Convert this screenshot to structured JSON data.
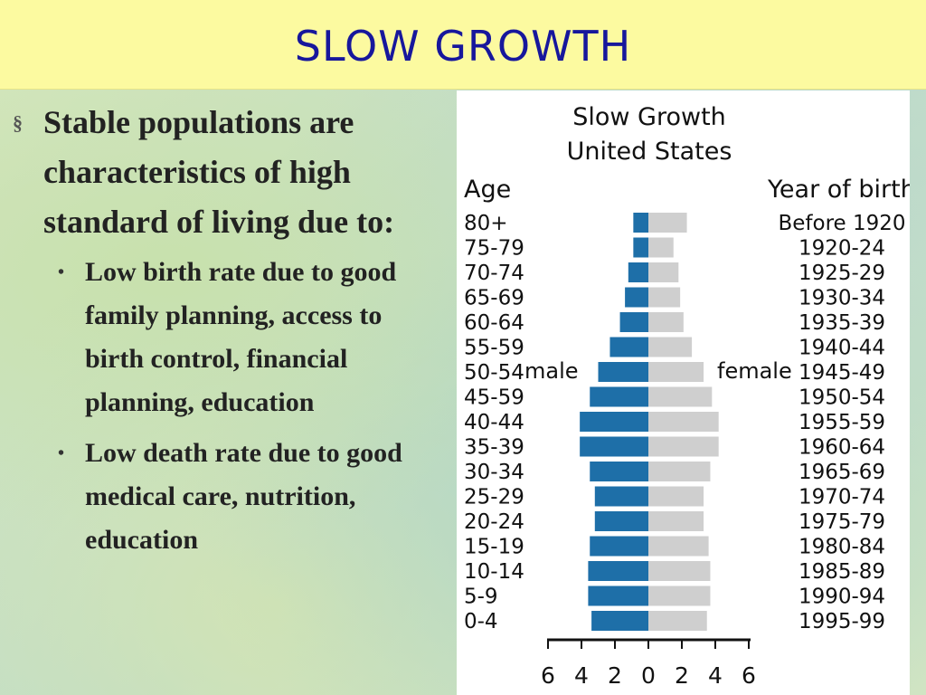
{
  "slide": {
    "title": "SLOW GROWTH",
    "bullet_main": "Stable populations are characteristics of high standard of living due to:",
    "sub_bullets": [
      "Low birth rate due to good family planning, access to birth control, financial planning, education",
      "Low death rate due to good medical care, nutrition, education"
    ],
    "bullet_marker": "§",
    "sub_marker": "•"
  },
  "chart_data": {
    "type": "bar",
    "orientation": "horizontal-population-pyramid",
    "title": "Slow Growth",
    "subtitle": "United States",
    "left_header": "Age",
    "right_header": "Year of birth",
    "male_label": "male",
    "female_label": "female",
    "xlim": [
      -6,
      6
    ],
    "x_ticks": [
      "6",
      "4",
      "2",
      "0",
      "2",
      "4",
      "6"
    ],
    "age_groups": [
      "80+",
      "75-79",
      "70-74",
      "65-69",
      "60-64",
      "55-59",
      "50-54",
      "45-59",
      "40-44",
      "35-39",
      "30-34",
      "25-29",
      "20-24",
      "15-19",
      "10-14",
      "5-9",
      "0-4"
    ],
    "birth_years": [
      "Before 1920",
      "1920-24",
      "1925-29",
      "1930-34",
      "1935-39",
      "1940-44",
      "1945-49",
      "1950-54",
      "1955-59",
      "1960-64",
      "1965-69",
      "1970-74",
      "1975-79",
      "1980-84",
      "1985-89",
      "1990-94",
      "1995-99"
    ],
    "series": [
      {
        "name": "male",
        "color": "#1e6fa8",
        "values": [
          0.9,
          0.9,
          1.2,
          1.4,
          1.7,
          2.3,
          3.0,
          3.5,
          4.1,
          4.1,
          3.5,
          3.2,
          3.2,
          3.5,
          3.6,
          3.6,
          3.4
        ]
      },
      {
        "name": "female",
        "color": "#cfcfcf",
        "values": [
          2.3,
          1.5,
          1.8,
          1.9,
          2.1,
          2.6,
          3.3,
          3.8,
          4.2,
          4.2,
          3.7,
          3.3,
          3.3,
          3.6,
          3.7,
          3.7,
          3.5
        ]
      }
    ]
  }
}
